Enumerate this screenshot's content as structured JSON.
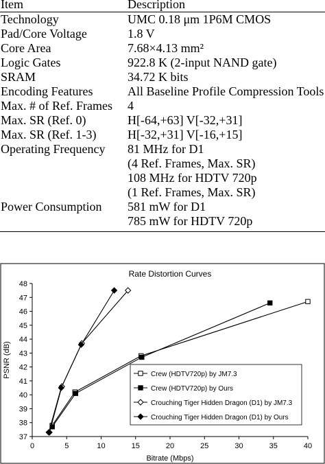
{
  "table": {
    "header": [
      "Item",
      "Description"
    ],
    "rows": [
      {
        "item": "Technology",
        "desc": [
          "UMC 0.18 μm 1P6M CMOS"
        ]
      },
      {
        "item": "Pad/Core Voltage",
        "desc": [
          "1.8 V"
        ]
      },
      {
        "item": "Core Area",
        "desc": [
          "7.68×4.13 mm²"
        ]
      },
      {
        "item": "Logic Gates",
        "desc": [
          "922.8 K (2-input NAND gate)"
        ]
      },
      {
        "item": "SRAM",
        "desc": [
          "34.72 K bits"
        ]
      },
      {
        "item": "Encoding Features",
        "desc": [
          "All Baseline Profile Compression Tools"
        ]
      },
      {
        "item": "Max. # of Ref. Frames",
        "desc": [
          "4"
        ]
      },
      {
        "item": "Max. SR (Ref. 0)",
        "desc": [
          "H[-64,+63] V[-32,+31]"
        ]
      },
      {
        "item": "Max. SR (Ref. 1-3)",
        "desc": [
          "H[-32,+31] V[-16,+15]"
        ]
      },
      {
        "item": "Operating Frequency",
        "desc": [
          "81 MHz for D1",
          "(4 Ref. Frames, Max. SR)",
          "108 MHz for HDTV 720p",
          "(1 Ref. Frames, Max. SR)"
        ]
      },
      {
        "item": "Power Consumption",
        "desc": [
          "581 mW for D1",
          "785 mW for HDTV 720p"
        ]
      }
    ]
  },
  "chart_data": {
    "type": "line",
    "title": "Rate Distortion Curves",
    "xlabel": "Bitrate (Mbps)",
    "ylabel": "PSNR (dB)",
    "xlim": [
      0,
      40
    ],
    "ylim": [
      37,
      48
    ],
    "xticks": [
      0,
      5,
      10,
      15,
      20,
      25,
      30,
      35,
      40
    ],
    "yticks": [
      37,
      38,
      39,
      40,
      41,
      42,
      43,
      44,
      45,
      46,
      47,
      48
    ],
    "legend_position": "bottom-right",
    "series": [
      {
        "name": "Crew (HDTV720p) by JM7.3",
        "marker": "open-square",
        "color": "#000000",
        "points": [
          [
            2.9,
            37.8
          ],
          [
            6.2,
            40.2
          ],
          [
            15.8,
            42.8
          ],
          [
            40.0,
            46.7
          ]
        ]
      },
      {
        "name": "Crew (HDTV720p) by Ours",
        "marker": "filled-square",
        "color": "#000000",
        "points": [
          [
            2.9,
            37.7
          ],
          [
            6.3,
            40.1
          ],
          [
            15.9,
            42.7
          ],
          [
            34.5,
            46.6
          ]
        ]
      },
      {
        "name": "Crouching Tiger Hidden Dragon (D1) by JM7.3",
        "marker": "open-diamond",
        "color": "#000000",
        "points": [
          [
            2.5,
            37.3
          ],
          [
            4.3,
            40.6
          ],
          [
            7.2,
            43.7
          ],
          [
            13.9,
            47.5
          ]
        ]
      },
      {
        "name": "Crouching Tiger Hidden Dragon (D1) by Ours",
        "marker": "filled-diamond",
        "color": "#000000",
        "points": [
          [
            2.4,
            37.3
          ],
          [
            4.2,
            40.5
          ],
          [
            7.1,
            43.6
          ],
          [
            11.9,
            47.5
          ]
        ]
      }
    ]
  }
}
